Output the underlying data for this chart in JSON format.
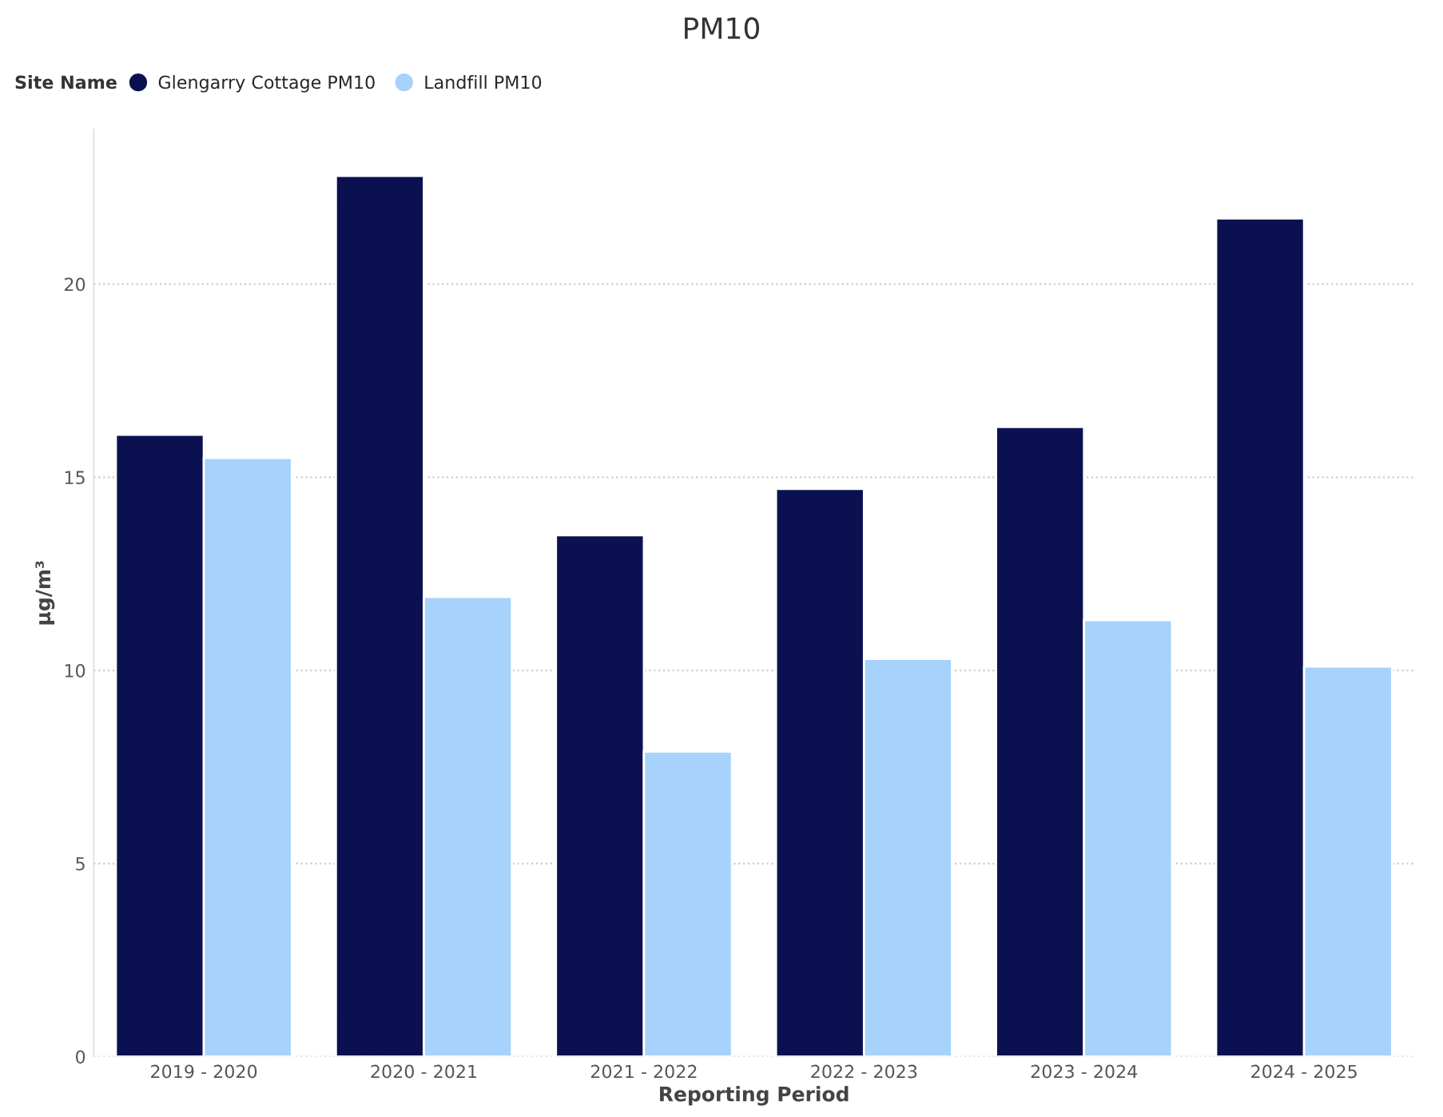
{
  "chart_data": {
    "type": "bar",
    "title": "PM10",
    "xlabel": "Reporting Period",
    "ylabel": "µg/m³",
    "legend_title": "Site Name",
    "categories": [
      "2019 - 2020",
      "2020 - 2021",
      "2021 - 2022",
      "2022 - 2023",
      "2023 - 2024",
      "2024 - 2025"
    ],
    "series": [
      {
        "name": "Glengarry Cottage PM10",
        "color": "#0b1150",
        "values": [
          16.1,
          22.8,
          13.5,
          14.7,
          16.3,
          21.7
        ]
      },
      {
        "name": "Landfill PM10",
        "color": "#a6d2fb",
        "values": [
          15.5,
          11.9,
          7.9,
          10.3,
          11.3,
          10.1
        ]
      }
    ],
    "ylim": [
      0,
      24
    ],
    "yticks": [
      0,
      5,
      10,
      15,
      20
    ],
    "grid": "y",
    "legend": "top left"
  }
}
